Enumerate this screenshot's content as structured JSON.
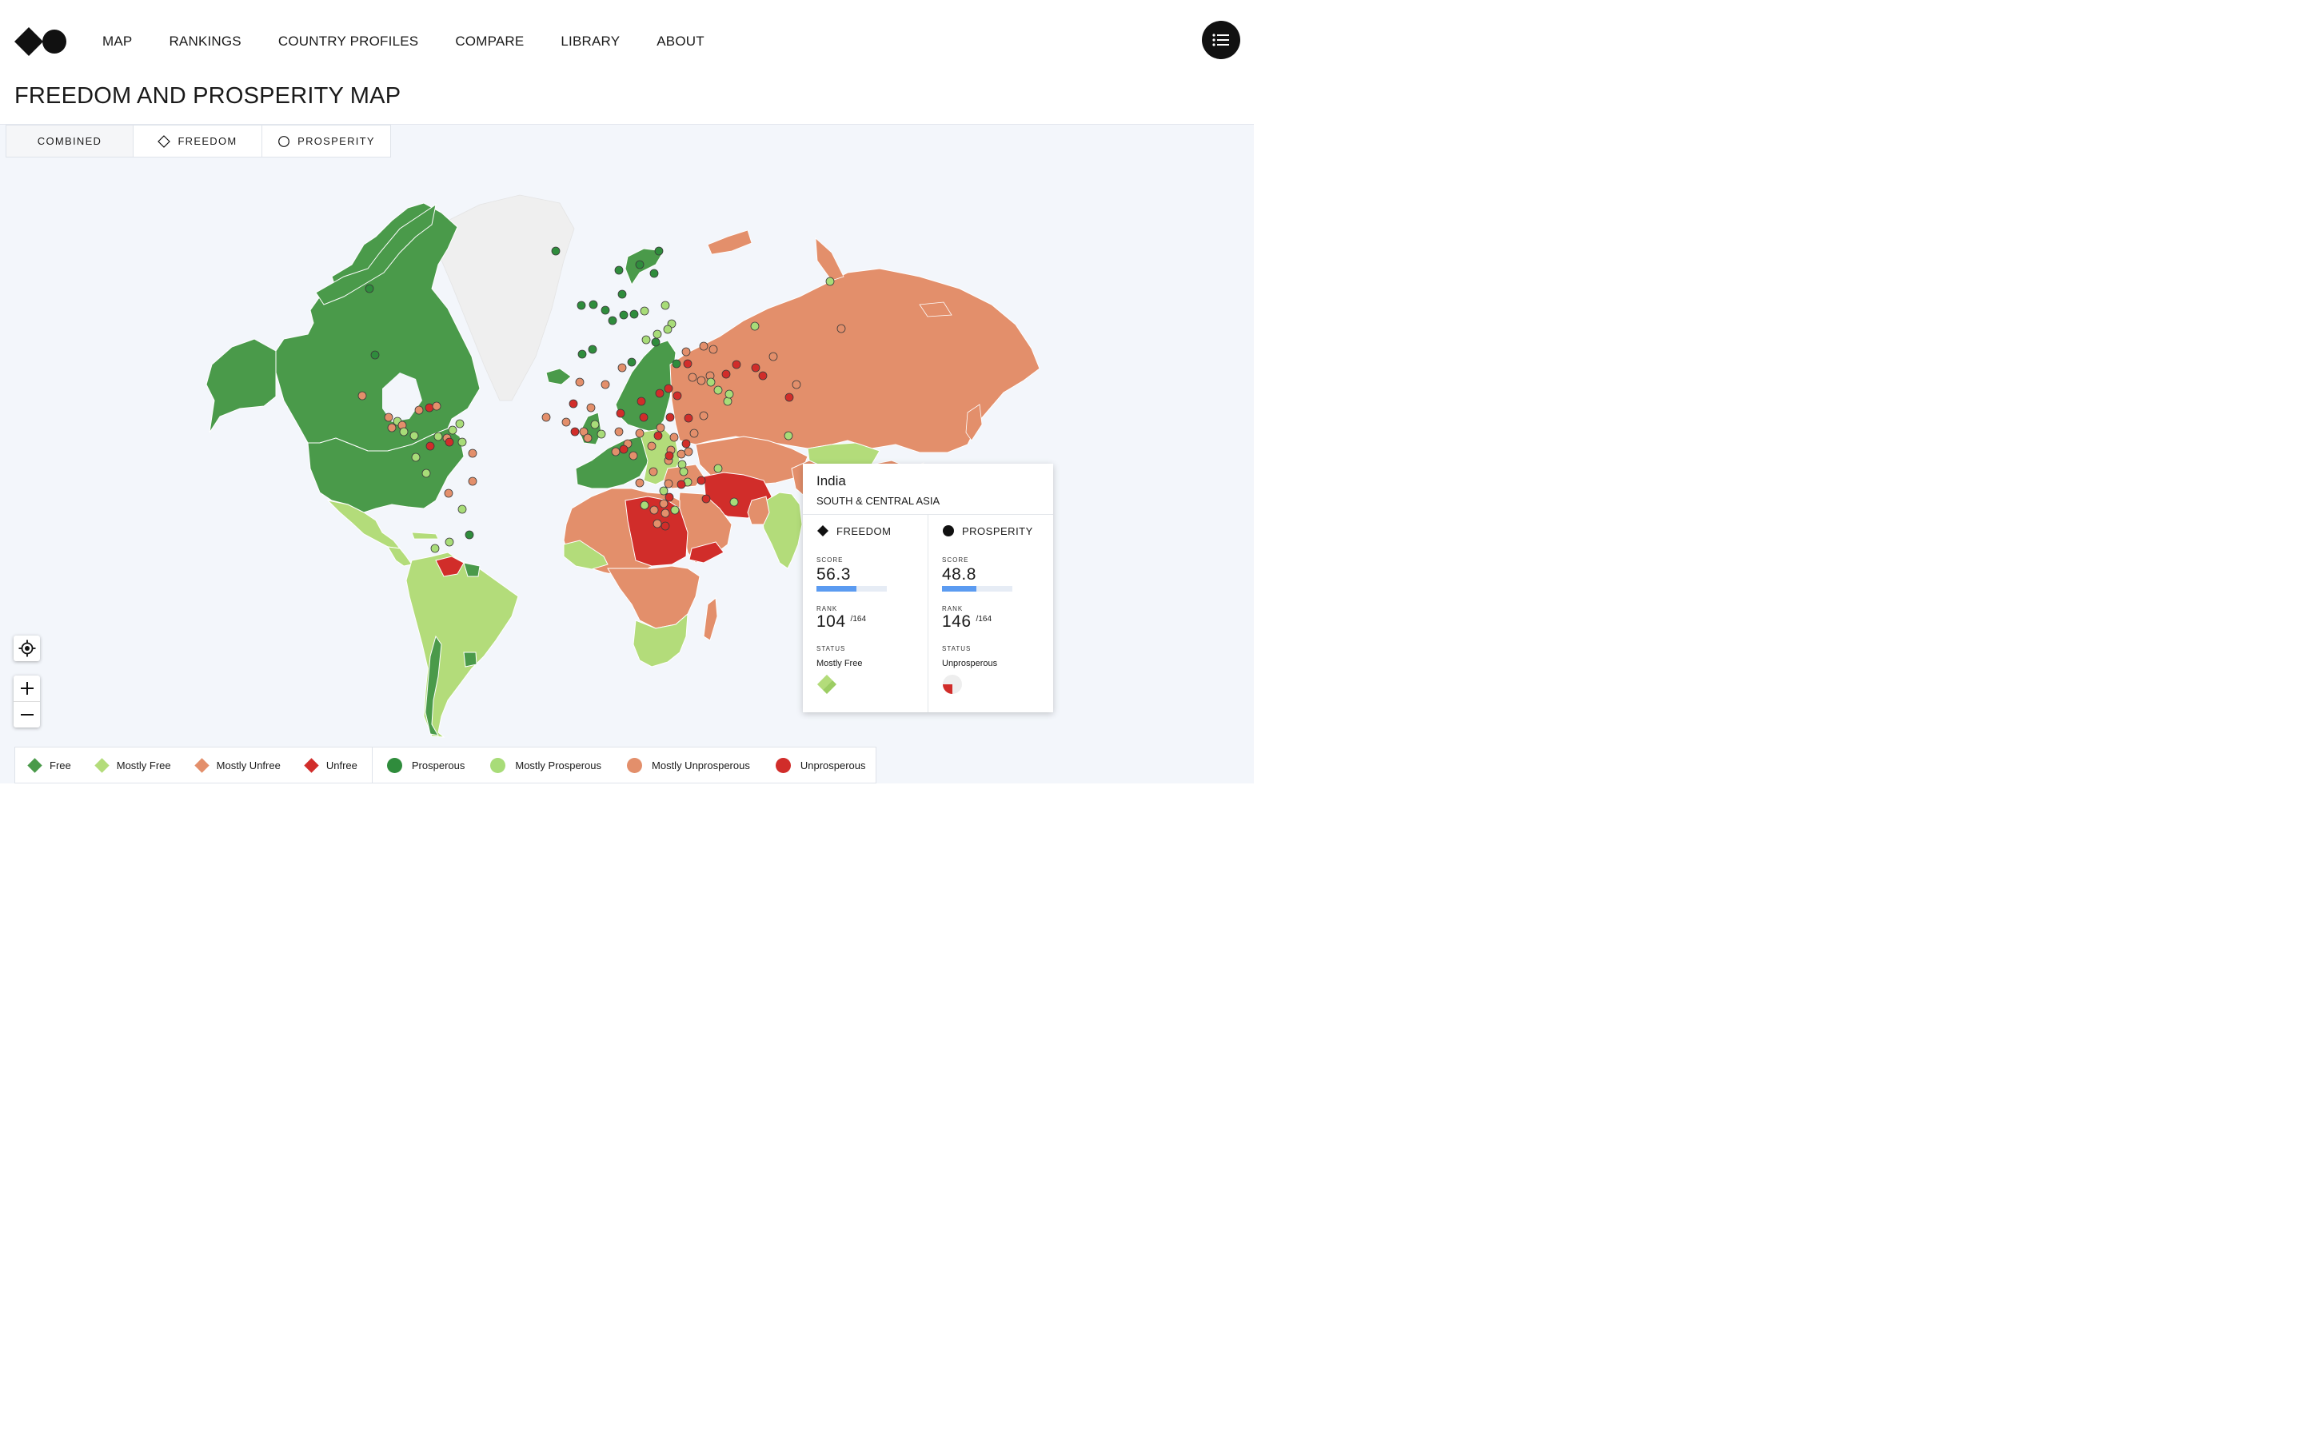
{
  "nav": {
    "items": [
      {
        "label": "MAP",
        "name": "nav-map"
      },
      {
        "label": "RANKINGS",
        "name": "nav-rankings"
      },
      {
        "label": "COUNTRY PROFILES",
        "name": "nav-country-profiles"
      },
      {
        "label": "COMPARE",
        "name": "nav-compare"
      },
      {
        "label": "LIBRARY",
        "name": "nav-library"
      },
      {
        "label": "ABOUT",
        "name": "nav-about"
      }
    ],
    "menu_icon": "list-icon"
  },
  "page": {
    "title": "FREEDOM AND PROSPERITY MAP"
  },
  "tabs": {
    "combined": "COMBINED",
    "freedom": "FREEDOM",
    "prosperity": "PROSPERITY",
    "active": "combined"
  },
  "colors": {
    "free": "#4a9a4a",
    "mostly_free": "#b3dc7a",
    "mostly_unfree": "#e38f6b",
    "unfree": "#d12d2a",
    "prosperous": "#2f8c3c",
    "mostly_prosperous": "#a8dc78",
    "mostly_unprosperous": "#e38f6b",
    "unprosperous": "#d12d2a",
    "no_data": "#efefef",
    "ocean": "#f3f6fb",
    "score_bar": "#5b9bf1"
  },
  "controls": {
    "locate_icon": "crosshair-icon",
    "zoom_in_icon": "plus-icon",
    "zoom_out_icon": "minus-icon"
  },
  "tooltip": {
    "country": "India",
    "region": "SOUTH & CENTRAL ASIA",
    "freedom": {
      "title": "FREEDOM",
      "score_label": "SCORE",
      "score": "56.3",
      "score_fraction": 0.563,
      "rank_label": "RANK",
      "rank": "104",
      "rank_total": "/164",
      "status_label": "STATUS",
      "status": "Mostly Free"
    },
    "prosperity": {
      "title": "PROSPERITY",
      "score_label": "SCORE",
      "score": "48.8",
      "score_fraction": 0.488,
      "rank_label": "RANK",
      "rank": "146",
      "rank_total": "/164",
      "status_label": "STATUS",
      "status": "Unprosperous"
    }
  },
  "legend": {
    "freedom": [
      {
        "label": "Free",
        "color_key": "free"
      },
      {
        "label": "Mostly Free",
        "color_key": "mostly_free"
      },
      {
        "label": "Mostly Unfree",
        "color_key": "mostly_unfree"
      },
      {
        "label": "Unfree",
        "color_key": "unfree"
      }
    ],
    "prosperity": [
      {
        "label": "Prosperous",
        "color_key": "prosperous"
      },
      {
        "label": "Mostly Prosperous",
        "color_key": "mostly_prosperous"
      },
      {
        "label": "Mostly Unprosperous",
        "color_key": "mostly_unprosperous"
      },
      {
        "label": "Unprosperous",
        "color_key": "unprosperous"
      }
    ]
  }
}
